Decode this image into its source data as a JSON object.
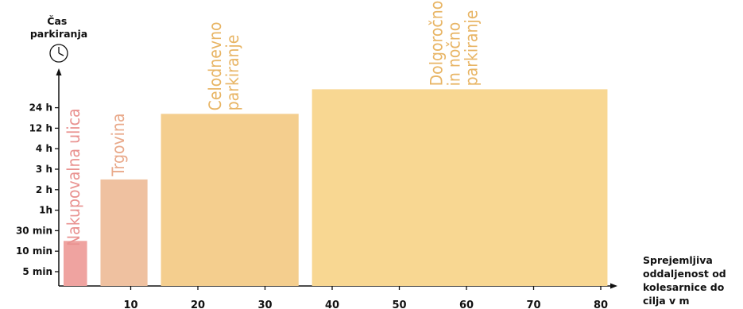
{
  "chart_data": {
    "type": "bar",
    "ylabel": [
      "Čas",
      "parkiranja"
    ],
    "xlabel": [
      "Sprejemljiva",
      "oddaljenost od",
      "kolesarnice do",
      "cilja v m"
    ],
    "y_ticks": [
      "5 min",
      "10 min",
      "30 min",
      "1h",
      "2 h",
      "3 h",
      "4 h",
      "12 h",
      "24 h"
    ],
    "x_ticks": [
      10,
      20,
      30,
      40,
      50,
      60,
      70,
      80
    ],
    "xlim": [
      0,
      83
    ],
    "bars": [
      {
        "label": [
          "Nakupovalna ulica"
        ],
        "x_start": 0,
        "x_end": 3.5,
        "level": 1.5,
        "color": "#EFA3A0",
        "text_color": "#E99290"
      },
      {
        "label": [
          "Trgovina"
        ],
        "x_start": 5.5,
        "x_end": 12.5,
        "level": 4.5,
        "color": "#EFC1A0",
        "text_color": "#E9A98A"
      },
      {
        "label": [
          "Celodnevno",
          "parkiranje"
        ],
        "x_start": 14.5,
        "x_end": 35,
        "level": 7.7,
        "color": "#F4CE8E",
        "text_color": "#E8B565"
      },
      {
        "label": [
          "Dolgoročno",
          "in nočno",
          "parkiranje"
        ],
        "x_start": 37,
        "x_end": 81,
        "level": 8.9,
        "color": "#F8D792",
        "text_color": "#E8B565"
      }
    ],
    "icons": [
      "clock-icon"
    ]
  }
}
